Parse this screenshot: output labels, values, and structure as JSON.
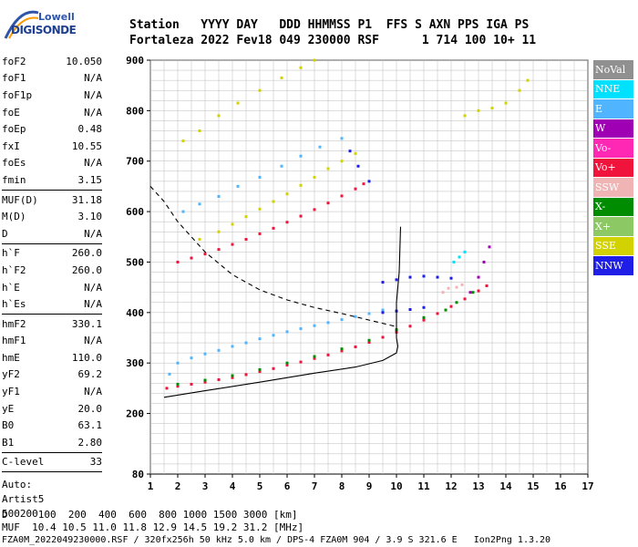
{
  "logo": {
    "line1": "Lowell",
    "line2": "DIGISONDE"
  },
  "header": {
    "row1": "Station   YYYY DAY   DDD HHMMSS P1  FFS S AXN PPS IGA PS",
    "row2": "Fortaleza 2022 Fev18 049 230000 RSF      1 714 100 10+ 11"
  },
  "params": {
    "group1": [
      {
        "label": "foF2",
        "value": "10.050"
      },
      {
        "label": "foF1",
        "value": "N/A"
      },
      {
        "label": "foF1p",
        "value": "N/A"
      },
      {
        "label": "foE",
        "value": "N/A"
      },
      {
        "label": "foEp",
        "value": "0.48"
      },
      {
        "label": "fxI",
        "value": "10.55"
      },
      {
        "label": "foEs",
        "value": "N/A"
      },
      {
        "label": "fmin",
        "value": "3.15"
      }
    ],
    "group2": [
      {
        "label": "MUF(D)",
        "value": "31.18"
      },
      {
        "label": "M(D)",
        "value": "3.10"
      },
      {
        "label": "D",
        "value": "N/A"
      }
    ],
    "group3": [
      {
        "label": "h`F",
        "value": "260.0"
      },
      {
        "label": "h`F2",
        "value": "260.0"
      },
      {
        "label": "h`E",
        "value": "N/A"
      },
      {
        "label": "h`Es",
        "value": "N/A"
      }
    ],
    "group4": [
      {
        "label": "hmF2",
        "value": "330.1"
      },
      {
        "label": "hmF1",
        "value": "N/A"
      },
      {
        "label": "hmE",
        "value": "110.0"
      },
      {
        "label": "yF2",
        "value": "69.2"
      },
      {
        "label": "yF1",
        "value": "N/A"
      },
      {
        "label": "yE",
        "value": "20.0"
      },
      {
        "label": "B0",
        "value": "63.1"
      },
      {
        "label": "B1",
        "value": "2.80"
      }
    ],
    "group5": [
      {
        "label": "C-level",
        "value": "33"
      }
    ],
    "auto": [
      "Auto:",
      "Artist5",
      "500200"
    ]
  },
  "legend": [
    {
      "label": "NoVal",
      "color": "#909090"
    },
    {
      "label": "NNE",
      "color": "#00e0ff"
    },
    {
      "label": "E",
      "color": "#50b4ff"
    },
    {
      "label": "W",
      "color": "#a000b4"
    },
    {
      "label": "Vo-",
      "color": "#ff28b4"
    },
    {
      "label": "Vo+",
      "color": "#f0143c"
    },
    {
      "label": "SSW",
      "color": "#f0b4b4"
    },
    {
      "label": "X-",
      "color": "#008c00"
    },
    {
      "label": "X+",
      "color": "#8cc864"
    },
    {
      "label": "SSE",
      "color": "#d2d200"
    },
    {
      "label": "NNW",
      "color": "#1e1ee6"
    }
  ],
  "footer": {
    "row1": "D     100  200  400  600  800 1000 1500 3000 [km]",
    "row2": "MUF  10.4 10.5 11.0 11.8 12.9 14.5 19.2 31.2 [MHz]",
    "row3": "FZA0M_2022049230000.RSF / 320fx256h 50 kHz 5.0 km / DPS-4 FZA0M 904 / 3.9 S 321.6 E   Ion2Png 1.3.20"
  },
  "chart_data": {
    "type": "scatter",
    "title": "",
    "xlabel": "",
    "ylabel": "",
    "xlim": [
      1,
      17
    ],
    "ylim": [
      80,
      900
    ],
    "xticks": [
      1,
      2,
      3,
      4,
      5,
      6,
      7,
      8,
      9,
      10,
      11,
      12,
      13,
      14,
      15,
      16,
      17
    ],
    "yticks": [
      80,
      200,
      300,
      400,
      500,
      600,
      700,
      800,
      900
    ],
    "traces": [
      {
        "name": "Vo+",
        "color": "#f0143c",
        "points": [
          [
            1.6,
            250
          ],
          [
            2,
            254
          ],
          [
            2.5,
            258
          ],
          [
            3,
            262
          ],
          [
            3.5,
            267
          ],
          [
            4,
            271
          ],
          [
            4.5,
            277
          ],
          [
            5,
            283
          ],
          [
            5.5,
            289
          ],
          [
            6,
            296
          ],
          [
            6.5,
            302
          ],
          [
            7,
            309
          ],
          [
            7.5,
            316
          ],
          [
            8,
            324
          ],
          [
            8.5,
            332
          ],
          [
            9,
            341
          ],
          [
            9.5,
            351
          ],
          [
            10,
            361
          ],
          [
            10.5,
            373
          ],
          [
            11,
            385
          ],
          [
            11.5,
            398
          ],
          [
            12,
            412
          ],
          [
            12.5,
            427
          ],
          [
            13,
            443
          ],
          [
            13.3,
            453
          ]
        ]
      },
      {
        "name": "X-",
        "color": "#008c00",
        "points": [
          [
            2,
            258
          ],
          [
            3,
            266
          ],
          [
            4,
            275
          ],
          [
            5,
            287
          ],
          [
            6,
            300
          ],
          [
            7,
            313
          ],
          [
            8,
            328
          ],
          [
            9,
            345
          ],
          [
            10,
            366
          ],
          [
            11,
            390
          ],
          [
            11.8,
            405
          ],
          [
            12.2,
            420
          ],
          [
            12.8,
            440
          ]
        ]
      },
      {
        "name": "E",
        "color": "#50b4ff",
        "points": [
          [
            1.7,
            278
          ],
          [
            2,
            300
          ],
          [
            2.5,
            310
          ],
          [
            3,
            318
          ],
          [
            3.5,
            325
          ],
          [
            4,
            333
          ],
          [
            4.5,
            340
          ],
          [
            5,
            348
          ],
          [
            5.5,
            355
          ],
          [
            6,
            362
          ],
          [
            6.5,
            368
          ],
          [
            7,
            374
          ],
          [
            7.5,
            380
          ],
          [
            8,
            386
          ],
          [
            8.5,
            392
          ],
          [
            9,
            398
          ],
          [
            9.5,
            405
          ]
        ]
      },
      {
        "name": "E-upper",
        "color": "#50b4ff",
        "points": [
          [
            2.2,
            600
          ],
          [
            2.8,
            615
          ],
          [
            3.5,
            630
          ],
          [
            4.2,
            650
          ],
          [
            5,
            668
          ],
          [
            5.8,
            690
          ],
          [
            6.5,
            710
          ],
          [
            7.2,
            728
          ],
          [
            8,
            745
          ]
        ]
      },
      {
        "name": "Vo+ 2nd",
        "color": "#f0143c",
        "points": [
          [
            2,
            500
          ],
          [
            2.5,
            508
          ],
          [
            3,
            516
          ],
          [
            3.5,
            525
          ],
          [
            4,
            535
          ],
          [
            4.5,
            545
          ],
          [
            5,
            556
          ],
          [
            5.5,
            567
          ],
          [
            6,
            579
          ],
          [
            6.5,
            591
          ],
          [
            7,
            604
          ],
          [
            7.5,
            617
          ],
          [
            8,
            631
          ],
          [
            8.5,
            645
          ],
          [
            8.8,
            655
          ]
        ]
      },
      {
        "name": "SSE 2nd",
        "color": "#d2d200",
        "points": [
          [
            2.8,
            545
          ],
          [
            3.5,
            560
          ],
          [
            4,
            575
          ],
          [
            4.5,
            590
          ],
          [
            5,
            605
          ],
          [
            5.5,
            620
          ],
          [
            6,
            635
          ],
          [
            6.5,
            652
          ],
          [
            7,
            668
          ],
          [
            7.5,
            685
          ],
          [
            8,
            700
          ],
          [
            8.5,
            715
          ]
        ]
      },
      {
        "name": "SSE 3rd",
        "color": "#d2d200",
        "points": [
          [
            2.2,
            740
          ],
          [
            2.8,
            760
          ],
          [
            3.5,
            790
          ],
          [
            4.2,
            815
          ],
          [
            5,
            840
          ],
          [
            5.8,
            865
          ],
          [
            6.5,
            885
          ],
          [
            7,
            900
          ]
        ]
      },
      {
        "name": "NNW",
        "color": "#1e1ee6",
        "points": [
          [
            9.5,
            400
          ],
          [
            10,
            403
          ],
          [
            10.5,
            406
          ],
          [
            11,
            410
          ],
          [
            9.5,
            460
          ],
          [
            10,
            465
          ],
          [
            10.5,
            470
          ],
          [
            11,
            472
          ],
          [
            11.5,
            470
          ],
          [
            12,
            468
          ],
          [
            8.3,
            720
          ],
          [
            8.6,
            690
          ],
          [
            9,
            660
          ]
        ]
      },
      {
        "name": "W",
        "color": "#a000b4",
        "points": [
          [
            12.7,
            440
          ],
          [
            13,
            470
          ],
          [
            13.2,
            500
          ],
          [
            13.4,
            530
          ]
        ]
      },
      {
        "name": "SSW",
        "color": "#f0b4b4",
        "points": [
          [
            11.7,
            440
          ],
          [
            11.9,
            448
          ],
          [
            12.2,
            450
          ],
          [
            12.4,
            455
          ]
        ]
      },
      {
        "name": "NNE",
        "color": "#00e0ff",
        "points": [
          [
            12.1,
            500
          ],
          [
            12.3,
            510
          ],
          [
            12.5,
            520
          ]
        ]
      },
      {
        "name": "SSE 4th",
        "color": "#d2d200",
        "points": [
          [
            12.5,
            790
          ],
          [
            13,
            800
          ],
          [
            13.5,
            805
          ],
          [
            14,
            815
          ],
          [
            14.5,
            840
          ],
          [
            14.8,
            860
          ]
        ]
      }
    ],
    "lines": [
      {
        "name": "profile",
        "style": "solid",
        "points": [
          [
            1.5,
            232
          ],
          [
            3,
            245
          ],
          [
            5,
            262
          ],
          [
            7,
            280
          ],
          [
            8.5,
            292
          ],
          [
            9.5,
            305
          ],
          [
            10,
            320
          ],
          [
            10.05,
            333
          ],
          [
            10,
            350
          ],
          [
            10,
            380
          ],
          [
            10,
            420
          ],
          [
            10.1,
            480
          ],
          [
            10.15,
            570
          ]
        ]
      },
      {
        "name": "muf-curve",
        "style": "dashed",
        "points": [
          [
            1,
            650
          ],
          [
            1.5,
            620
          ],
          [
            2,
            580
          ],
          [
            3,
            520
          ],
          [
            4,
            475
          ],
          [
            5,
            445
          ],
          [
            6,
            425
          ],
          [
            7,
            410
          ],
          [
            8,
            398
          ],
          [
            9,
            385
          ],
          [
            10,
            372
          ]
        ]
      }
    ]
  }
}
